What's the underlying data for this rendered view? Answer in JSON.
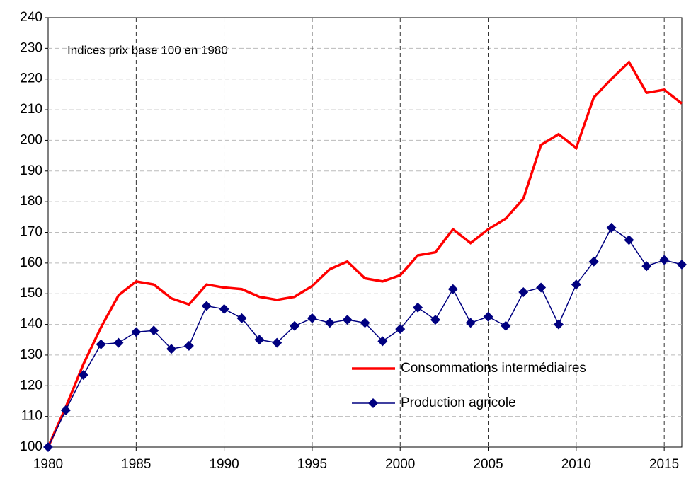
{
  "chart_data": {
    "type": "line",
    "annotation": "Indices prix base 100 en  1980",
    "x": [
      1980,
      1981,
      1982,
      1983,
      1984,
      1985,
      1986,
      1987,
      1988,
      1989,
      1990,
      1991,
      1992,
      1993,
      1994,
      1995,
      1996,
      1997,
      1998,
      1999,
      2000,
      2001,
      2002,
      2003,
      2004,
      2005,
      2006,
      2007,
      2008,
      2009,
      2010,
      2011,
      2012,
      2013,
      2014,
      2015,
      2016
    ],
    "series": [
      {
        "name": "Consommations intermédiaires",
        "color": "#ff0000",
        "marker": "none",
        "values": [
          100,
          113,
          127,
          139,
          149.5,
          154,
          153,
          148.5,
          146.5,
          153,
          152,
          151.5,
          149,
          148,
          149,
          152.5,
          158,
          160.5,
          155,
          154,
          156,
          162.5,
          163.5,
          171,
          166.5,
          171,
          174.5,
          181,
          198.5,
          202,
          197.5,
          214,
          220,
          225.5,
          215.5,
          216.5,
          212
        ]
      },
      {
        "name": "Production agricole",
        "color": "#000080",
        "marker": "diamond",
        "values": [
          100,
          112,
          123.5,
          133.5,
          134,
          137.5,
          138,
          132,
          133,
          146,
          145,
          142,
          135,
          134,
          139.5,
          142,
          140.5,
          141.5,
          140.5,
          134.5,
          138.5,
          145.5,
          141.5,
          151.5,
          140.5,
          142.5,
          139.5,
          150.5,
          152,
          140,
          153,
          160.5,
          171.5,
          167.5,
          159,
          161,
          159.5
        ]
      }
    ],
    "xlim": [
      1980,
      2016
    ],
    "ylim": [
      100,
      240
    ],
    "xticks": [
      1980,
      1985,
      1990,
      1995,
      2000,
      2005,
      2010,
      2015
    ],
    "yticks": [
      100,
      110,
      120,
      130,
      140,
      150,
      160,
      170,
      180,
      190,
      200,
      210,
      220,
      230,
      240
    ],
    "grid": true
  }
}
